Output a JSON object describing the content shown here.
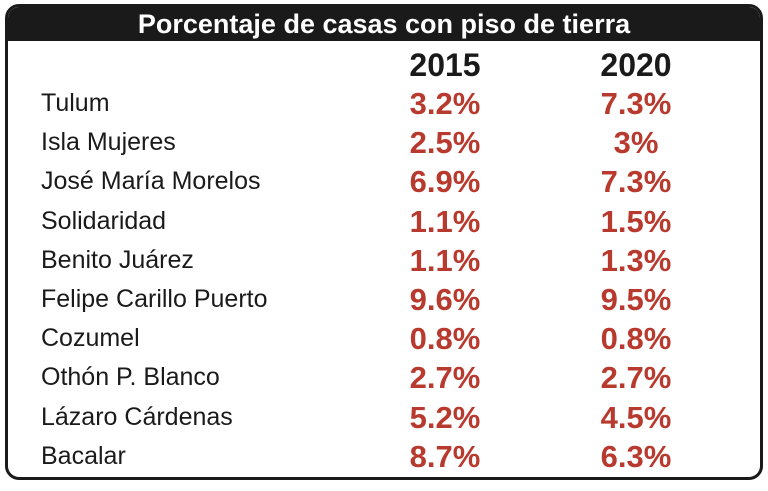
{
  "title": "Porcentaje de casas con piso de tierra",
  "colors": {
    "frame": "#1a1a1a",
    "title_bg": "#1a1a1a",
    "title_text": "#ffffff",
    "value_text": "#b83a2e",
    "label_text": "#1a1a1a"
  },
  "chart_data": {
    "type": "table",
    "title": "Porcentaje de casas con piso de tierra",
    "columns": [
      "2015",
      "2020"
    ],
    "rows": [
      {
        "name": "Tulum",
        "v2015": "3.2%",
        "v2020": "7.3%"
      },
      {
        "name": "Isla Mujeres",
        "v2015": "2.5%",
        "v2020": "3%"
      },
      {
        "name": "José María Morelos",
        "v2015": "6.9%",
        "v2020": "7.3%"
      },
      {
        "name": "Solidaridad",
        "v2015": "1.1%",
        "v2020": "1.5%"
      },
      {
        "name": "Benito Juárez",
        "v2015": "1.1%",
        "v2020": "1.3%"
      },
      {
        "name": "Felipe Carillo Puerto",
        "v2015": "9.6%",
        "v2020": "9.5%"
      },
      {
        "name": "Cozumel",
        "v2015": "0.8%",
        "v2020": "0.8%"
      },
      {
        "name": "Othón P. Blanco",
        "v2015": "2.7%",
        "v2020": "2.7%"
      },
      {
        "name": "Lázaro Cárdenas",
        "v2015": "5.2%",
        "v2020": "4.5%"
      },
      {
        "name": "Bacalar",
        "v2015": "8.7%",
        "v2020": "6.3%"
      }
    ]
  }
}
